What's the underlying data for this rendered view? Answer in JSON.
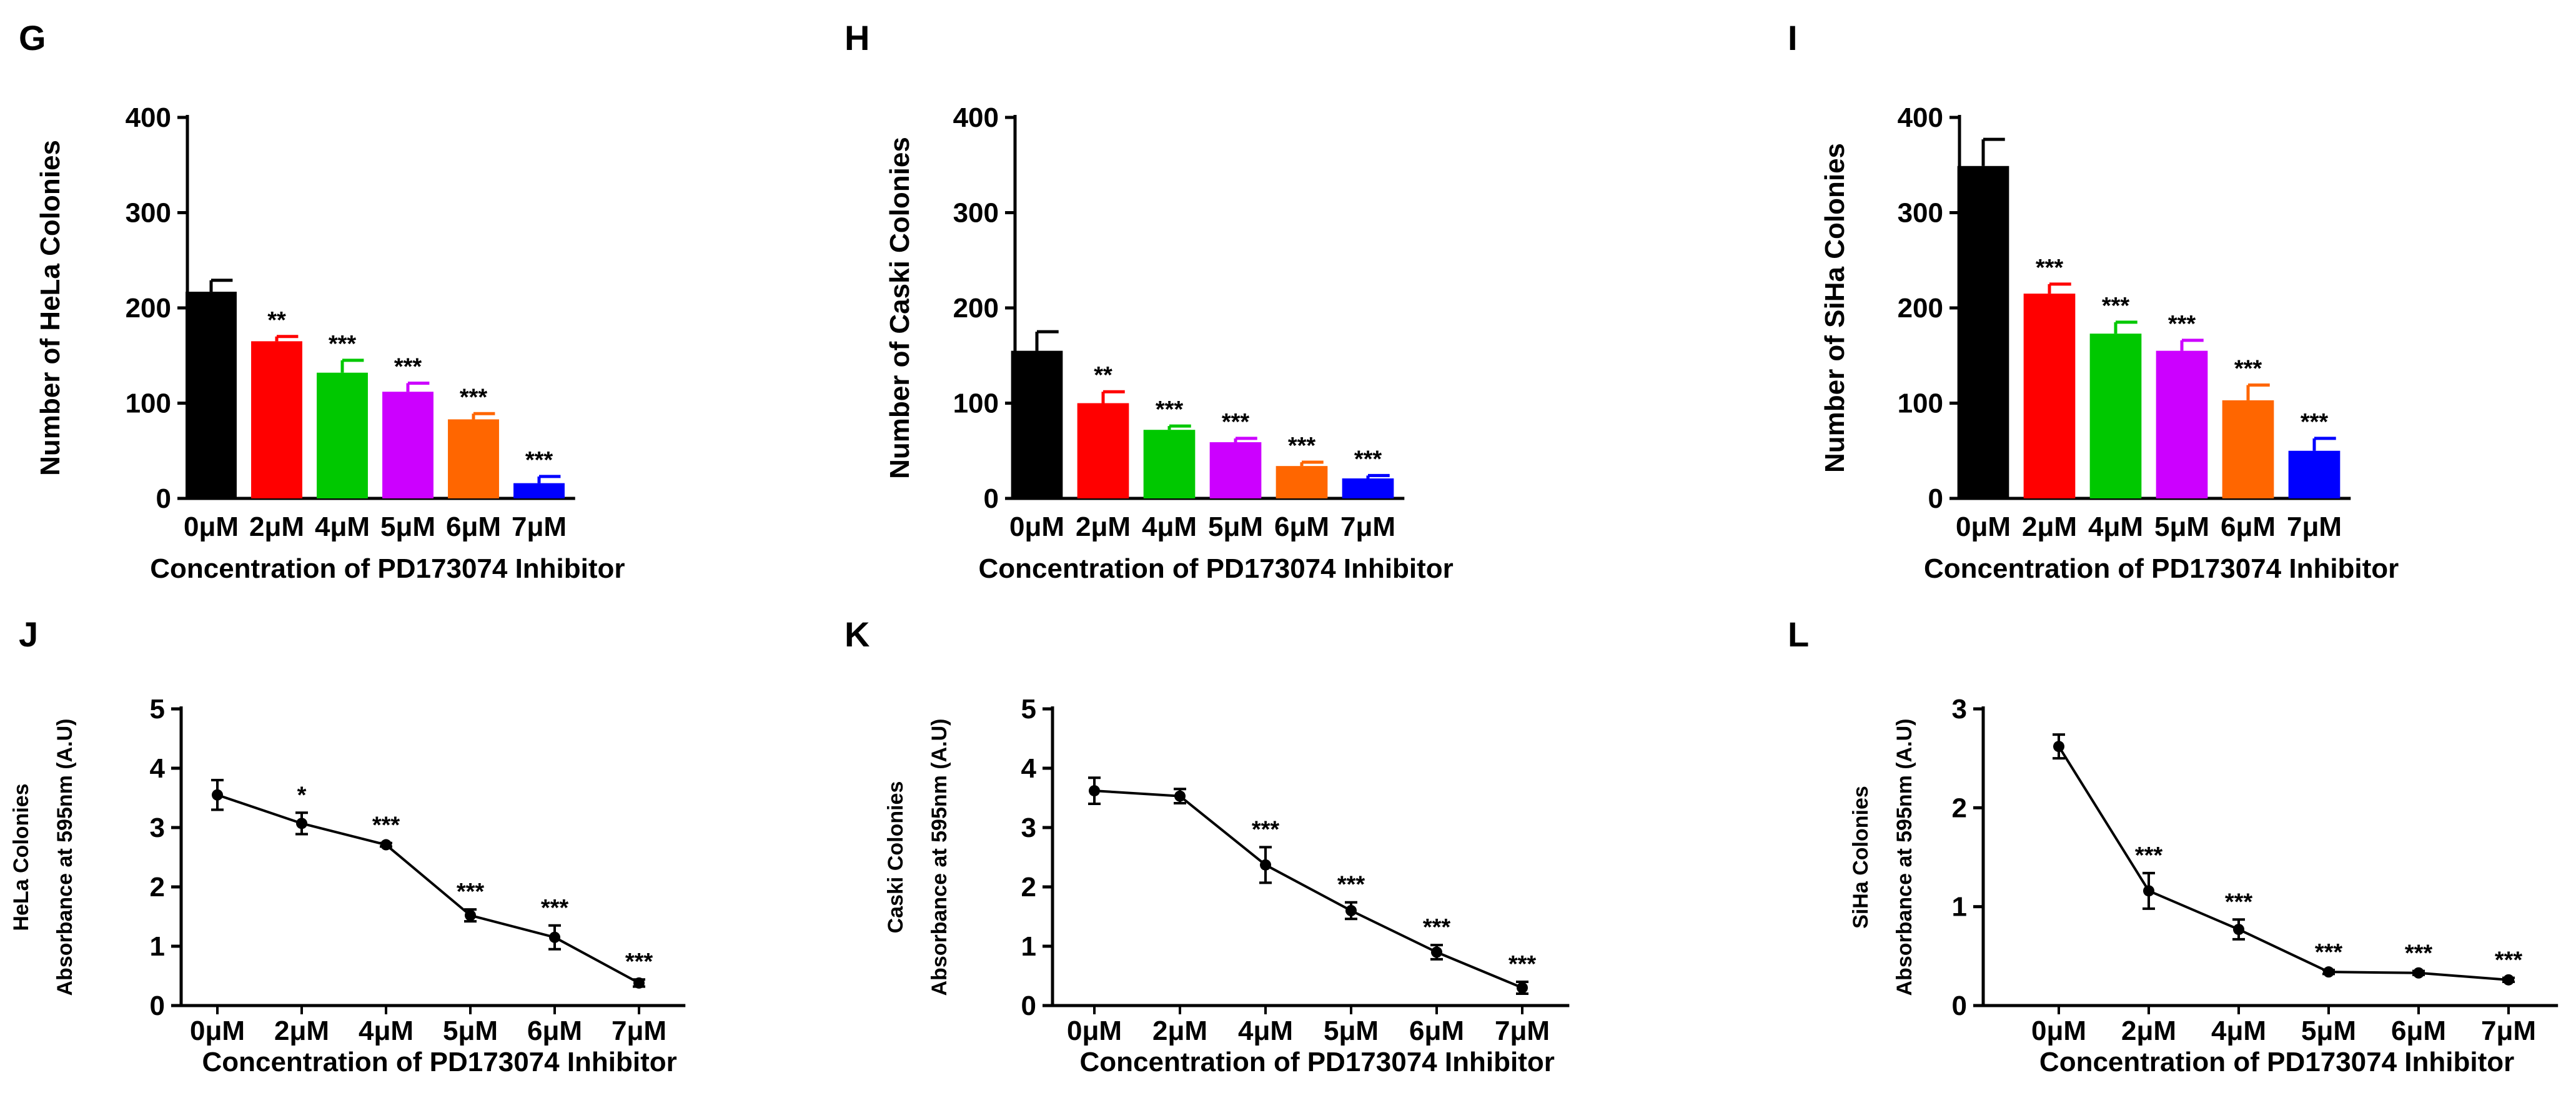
{
  "chart_data": [
    {
      "panel": "G",
      "type": "bar",
      "categories": [
        "0μM",
        "2μM",
        "4μM",
        "5μM",
        "6μM",
        "7μM"
      ],
      "values": [
        217,
        165,
        132,
        112,
        83,
        16
      ],
      "errors": [
        12,
        5,
        13,
        9,
        6,
        7
      ],
      "colors": [
        "#000000",
        "#ff0000",
        "#00c800",
        "#cc00ff",
        "#ff6600",
        "#0000ff"
      ],
      "significance": [
        "",
        "**",
        "***",
        "***",
        "***",
        "***"
      ],
      "ylabel": "Number of HeLa Colonies",
      "xlabel": "Concentration of PD173074 Inhibitor",
      "ylim": [
        0,
        400
      ],
      "yticks": [
        "0",
        "100",
        "200",
        "300",
        "400"
      ]
    },
    {
      "panel": "H",
      "type": "bar",
      "categories": [
        "0μM",
        "2μM",
        "4μM",
        "5μM",
        "6μM",
        "7μM"
      ],
      "values": [
        155,
        100,
        72,
        59,
        34,
        21
      ],
      "errors": [
        20,
        12,
        4,
        4,
        4,
        3
      ],
      "colors": [
        "#000000",
        "#ff0000",
        "#00c800",
        "#cc00ff",
        "#ff6600",
        "#0000ff"
      ],
      "significance": [
        "",
        "**",
        "***",
        "***",
        "***",
        "***"
      ],
      "ylabel": "Number of Caski Colonies",
      "xlabel": "Concentration of PD173074 Inhibitor",
      "ylim": [
        0,
        400
      ],
      "yticks": [
        "0",
        "100",
        "200",
        "300",
        "400"
      ]
    },
    {
      "panel": "I",
      "type": "bar",
      "categories": [
        "0μM",
        "2μM",
        "4μM",
        "5μM",
        "6μM",
        "7μM"
      ],
      "values": [
        349,
        215,
        173,
        155,
        103,
        50
      ],
      "errors": [
        28,
        10,
        12,
        11,
        16,
        13
      ],
      "colors": [
        "#000000",
        "#ff0000",
        "#00c800",
        "#cc00ff",
        "#ff6600",
        "#0000ff"
      ],
      "significance": [
        "",
        "***",
        "***",
        "***",
        "***",
        "***"
      ],
      "ylabel": "Number of SiHa Colonies",
      "xlabel": "Concentration of PD173074 Inhibitor",
      "ylim": [
        0,
        400
      ],
      "yticks": [
        "0",
        "100",
        "200",
        "300",
        "400"
      ]
    },
    {
      "panel": "J",
      "type": "line",
      "categories": [
        "0μM",
        "2μM",
        "4μM",
        "5μM",
        "6μM",
        "7μM"
      ],
      "values": [
        3.55,
        3.07,
        2.71,
        1.52,
        1.15,
        0.38
      ],
      "errors": [
        0.25,
        0.18,
        0.03,
        0.1,
        0.2,
        0.06
      ],
      "significance": [
        "",
        "*",
        "***",
        "***",
        "***",
        "***"
      ],
      "ylabel_line1": "HeLa Colonies",
      "ylabel_line2": "Absorbance at 595nm (A.U)",
      "xlabel": "Concentration of PD173074 Inhibitor",
      "ylim": [
        0,
        5
      ],
      "yticks": [
        "0",
        "1",
        "2",
        "3",
        "4",
        "5"
      ]
    },
    {
      "panel": "K",
      "type": "line",
      "categories": [
        "0μM",
        "2μM",
        "4μM",
        "5μM",
        "6μM",
        "7μM"
      ],
      "values": [
        3.62,
        3.53,
        2.37,
        1.6,
        0.9,
        0.3
      ],
      "errors": [
        0.22,
        0.12,
        0.3,
        0.14,
        0.12,
        0.1
      ],
      "significance": [
        "",
        "",
        "***",
        "***",
        "***",
        "***"
      ],
      "ylabel_line1": "Caski Colonies",
      "ylabel_line2": "Absorbance at 595nm (A.U)",
      "xlabel": "Concentration of PD173074 Inhibitor",
      "ylim": [
        0,
        5
      ],
      "yticks": [
        "0",
        "1",
        "2",
        "3",
        "4",
        "5"
      ]
    },
    {
      "panel": "L",
      "type": "line",
      "categories": [
        "0μM",
        "2μM",
        "4μM",
        "5μM",
        "6μM",
        "7μM"
      ],
      "values": [
        2.62,
        1.16,
        0.77,
        0.34,
        0.33,
        0.26
      ],
      "errors": [
        0.12,
        0.18,
        0.1,
        0.02,
        0.02,
        0.02
      ],
      "significance": [
        "",
        "***",
        "***",
        "***",
        "***",
        "***"
      ],
      "ylabel_line1": "SiHa Colonies",
      "ylabel_line2": "Absorbance at 595nm (A.U)",
      "xlabel": "Concentration of PD173074 Inhibitor",
      "ylim": [
        0,
        3
      ],
      "yticks": [
        "0",
        "1",
        "2",
        "3"
      ]
    }
  ]
}
